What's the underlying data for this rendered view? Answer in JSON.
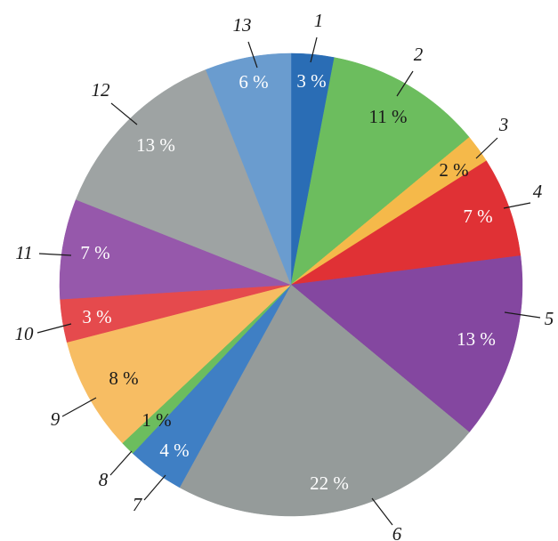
{
  "chart_data": {
    "type": "pie",
    "categories": [
      "1",
      "2",
      "3",
      "4",
      "5",
      "6",
      "7",
      "8",
      "9",
      "10",
      "11",
      "12",
      "13"
    ],
    "values": [
      3,
      11,
      2,
      7,
      13,
      22,
      4,
      1,
      8,
      3,
      7,
      13,
      6
    ],
    "value_labels": [
      "3 %",
      "11 %",
      "2 %",
      "7 %",
      "13 %",
      "22 %",
      "4 %",
      "1 %",
      "8 %",
      "3 %",
      "7 %",
      "13 %",
      "6 %"
    ],
    "colors": [
      "#2a6db5",
      "#6cbd5e",
      "#f5b94a",
      "#e03135",
      "#8447a0",
      "#959b9a",
      "#3f7fc4",
      "#6cbd5e",
      "#f7bd63",
      "#e54a4d",
      "#9658ab",
      "#9ea3a3",
      "#6a9ccf"
    ],
    "label_colors": [
      "#ffffff",
      "#1a1a1a",
      "#1a1a1a",
      "#ffffff",
      "#ffffff",
      "#ffffff",
      "#ffffff",
      "#1a1a1a",
      "#1a1a1a",
      "#ffffff",
      "#ffffff",
      "#ffffff",
      "#ffffff"
    ],
    "start_angle_deg": 0,
    "direction": "clockwise",
    "legend": "none"
  }
}
